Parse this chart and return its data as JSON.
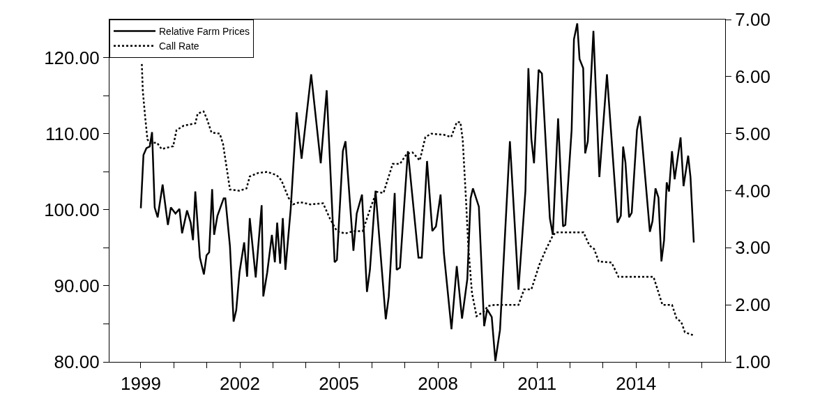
{
  "chart_data": {
    "type": "line",
    "xlim": [
      1998.05,
      2016.7
    ],
    "xticks": [
      {
        "value": 1999,
        "label": "1999"
      },
      {
        "value": 2000,
        "label": null
      },
      {
        "value": 2001,
        "label": null
      },
      {
        "value": 2002,
        "label": "2002"
      },
      {
        "value": 2003,
        "label": null
      },
      {
        "value": 2004,
        "label": null
      },
      {
        "value": 2005,
        "label": "2005"
      },
      {
        "value": 2006,
        "label": null
      },
      {
        "value": 2007,
        "label": null
      },
      {
        "value": 2008,
        "label": "2008"
      },
      {
        "value": 2009,
        "label": null
      },
      {
        "value": 2010,
        "label": null
      },
      {
        "value": 2011,
        "label": "2011"
      },
      {
        "value": 2012,
        "label": null
      },
      {
        "value": 2013,
        "label": null
      },
      {
        "value": 2014,
        "label": "2014"
      },
      {
        "value": 2015,
        "label": null
      },
      {
        "value": 2016,
        "label": null
      }
    ],
    "ylim": [
      80,
      125
    ],
    "yticks": [
      {
        "value": 80,
        "label": "80.00"
      },
      {
        "value": 85,
        "label": null
      },
      {
        "value": 90,
        "label": "90.00"
      },
      {
        "value": 95,
        "label": null
      },
      {
        "value": 100,
        "label": "100.00"
      },
      {
        "value": 105,
        "label": null
      },
      {
        "value": 110,
        "label": "110.00"
      },
      {
        "value": 115,
        "label": null
      },
      {
        "value": 120,
        "label": "120.00"
      }
    ],
    "y2lim": [
      1,
      7
    ],
    "y2ticks": [
      {
        "value": 1,
        "label": "1.00"
      },
      {
        "value": 2,
        "label": "2.00"
      },
      {
        "value": 3,
        "label": "3.00"
      },
      {
        "value": 4,
        "label": "4.00"
      },
      {
        "value": 5,
        "label": "5.00"
      },
      {
        "value": 6,
        "label": "6.00"
      },
      {
        "value": 7,
        "label": "7.00"
      }
    ],
    "legend": "top left",
    "marker": "none",
    "series": [
      {
        "name": "Relative Farm Prices",
        "color": "#000000",
        "line_style": "solid",
        "x": [
          1999.0,
          1999.08,
          1999.17,
          1999.27,
          1999.34,
          1999.42,
          1999.51,
          1999.66,
          1999.82,
          1999.91,
          2000.05,
          2000.17,
          2000.25,
          2000.4,
          2000.51,
          2000.58,
          2000.65,
          2000.79,
          2000.91,
          2000.99,
          2001.07,
          2001.16,
          2001.22,
          2001.32,
          2001.51,
          2001.56,
          2001.7,
          2001.81,
          2001.89,
          2001.99,
          2002.13,
          2002.22,
          2002.3,
          2002.48,
          2002.66,
          2002.71,
          2002.83,
          2002.97,
          2003.06,
          2003.13,
          2003.22,
          2003.3,
          2003.38,
          2003.54,
          2003.72,
          2003.87,
          2004.16,
          2004.45,
          2004.63,
          2004.87,
          2004.94,
          2005.12,
          2005.2,
          2005.44,
          2005.54,
          2005.7,
          2005.85,
          2005.94,
          2006.11,
          2006.42,
          2006.51,
          2006.69,
          2006.75,
          2006.85,
          2007.09,
          2007.41,
          2007.51,
          2007.67,
          2007.83,
          2007.94,
          2008.08,
          2008.18,
          2008.41,
          2008.57,
          2008.73,
          2008.89,
          2008.99,
          2009.06,
          2009.24,
          2009.4,
          2009.49,
          2009.63,
          2009.74,
          2009.88,
          2010.18,
          2010.44,
          2010.65,
          2010.74,
          2010.83,
          2010.91,
          2011.05,
          2011.15,
          2011.39,
          2011.48,
          2011.64,
          2011.79,
          2011.86,
          2012.05,
          2012.12,
          2012.22,
          2012.29,
          2012.4,
          2012.46,
          2012.54,
          2012.71,
          2012.89,
          2013.12,
          2013.44,
          2013.54,
          2013.61,
          2013.68,
          2013.79,
          2013.87,
          2014.03,
          2014.12,
          2014.42,
          2014.5,
          2014.59,
          2014.68,
          2014.77,
          2014.85,
          2014.93,
          2015.0,
          2015.09,
          2015.17,
          2015.35,
          2015.44,
          2015.58,
          2015.65,
          2015.75
        ],
        "values": [
          100.2,
          107.2,
          108.1,
          108.3,
          110.2,
          100.3,
          99.0,
          103.3,
          98.0,
          100.3,
          99.5,
          100.1,
          96.9,
          99.9,
          98.3,
          96.0,
          102.4,
          93.7,
          91.5,
          94.0,
          94.4,
          102.7,
          96.7,
          99.2,
          101.5,
          101.5,
          95.2,
          85.3,
          86.8,
          91.8,
          95.7,
          91.2,
          98.9,
          91.1,
          100.6,
          88.6,
          91.8,
          96.7,
          93.1,
          98.3,
          92.9,
          98.9,
          92.1,
          100.1,
          112.8,
          106.7,
          117.8,
          106.1,
          115.7,
          93.1,
          93.4,
          107.7,
          109.0,
          94.6,
          99.5,
          102.0,
          89.2,
          92.1,
          102.5,
          85.6,
          88.6,
          102.2,
          92.1,
          92.4,
          107.7,
          93.7,
          93.7,
          106.4,
          97.2,
          97.8,
          102.0,
          94.3,
          84.3,
          92.6,
          85.7,
          90.9,
          101.5,
          102.8,
          100.4,
          84.7,
          86.9,
          85.9,
          80.1,
          84.2,
          109.0,
          89.5,
          102.5,
          118.6,
          109.3,
          106.1,
          118.4,
          117.9,
          98.9,
          96.7,
          112.0,
          97.8,
          98.0,
          110.5,
          122.4,
          124.5,
          119.8,
          118.6,
          107.4,
          109.0,
          123.5,
          104.3,
          117.8,
          98.3,
          99.2,
          108.3,
          106.2,
          99.0,
          99.6,
          110.5,
          112.3,
          97.1,
          98.5,
          102.8,
          101.6,
          93.2,
          96.0,
          103.6,
          102.4,
          107.7,
          104.0,
          109.5,
          103.1,
          107.1,
          104.3,
          95.7
        ]
      },
      {
        "name": "Call Rate",
        "color": "#000000",
        "line_style": "dotted",
        "axis": "y2",
        "x": [
          1999.03,
          1999.06,
          1999.13,
          1999.2,
          1999.27,
          1999.49,
          1999.63,
          1999.98,
          2000.08,
          2000.3,
          2000.65,
          2000.72,
          2000.9,
          2001.0,
          2001.14,
          2001.39,
          2001.49,
          2001.7,
          2001.99,
          2002.2,
          2002.3,
          2002.55,
          2002.83,
          2003.12,
          2003.26,
          2003.47,
          2003.61,
          2003.82,
          2004.14,
          2004.52,
          2004.73,
          2004.94,
          2005.19,
          2005.44,
          2005.72,
          2005.97,
          2006.14,
          2006.35,
          2006.63,
          2006.85,
          2007.06,
          2007.23,
          2007.45,
          2007.62,
          2007.8,
          2008.18,
          2008.4,
          2008.57,
          2008.68,
          2008.75,
          2008.85,
          2008.92,
          2009.03,
          2009.17,
          2009.38,
          2009.52,
          2009.74,
          2010.44,
          2010.61,
          2010.83,
          2011.07,
          2011.28,
          2011.46,
          2011.56,
          2012.41,
          2012.59,
          2012.73,
          2012.87,
          2013.26,
          2013.47,
          2014.53,
          2014.8,
          2015.09,
          2015.23,
          2015.37,
          2015.48,
          2015.72
        ],
        "values": [
          6.22,
          5.75,
          5.3,
          4.9,
          4.84,
          4.84,
          4.73,
          4.78,
          5.06,
          5.14,
          5.18,
          5.35,
          5.39,
          5.26,
          5.02,
          5.0,
          4.82,
          4.02,
          4.0,
          4.04,
          4.25,
          4.31,
          4.33,
          4.27,
          4.18,
          3.88,
          3.76,
          3.8,
          3.76,
          3.78,
          3.51,
          3.29,
          3.25,
          3.29,
          3.29,
          3.72,
          3.98,
          3.96,
          4.47,
          4.47,
          4.65,
          4.67,
          4.53,
          4.94,
          5.0,
          4.98,
          4.94,
          5.2,
          5.2,
          4.9,
          3.84,
          3.02,
          2.21,
          1.8,
          1.88,
          1.98,
          2.0,
          2.0,
          2.27,
          2.27,
          2.7,
          2.98,
          3.19,
          3.27,
          3.27,
          3.04,
          2.98,
          2.76,
          2.74,
          2.49,
          2.49,
          2.0,
          2.0,
          1.76,
          1.7,
          1.52,
          1.47
        ]
      }
    ]
  }
}
